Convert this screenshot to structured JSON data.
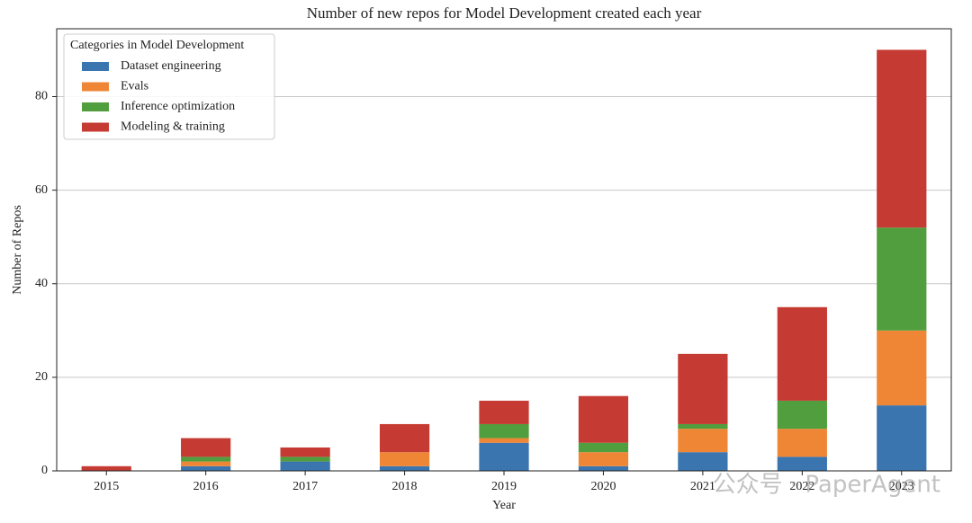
{
  "chart_data": {
    "type": "stacked_bar",
    "title": "Number of new repos for Model Development created each year",
    "x_label": "Year",
    "y_label": "Number of Repos",
    "categories": [
      "2015",
      "2016",
      "2017",
      "2018",
      "2019",
      "2020",
      "2021",
      "2022",
      "2023"
    ],
    "series": [
      {
        "name": "Dataset engineering",
        "color": "#3a75b0",
        "values": [
          0,
          1,
          2,
          1,
          6,
          1,
          4,
          3,
          14
        ]
      },
      {
        "name": "Evals",
        "color": "#ef8636",
        "values": [
          0,
          1,
          0,
          3,
          1,
          3,
          5,
          6,
          16
        ]
      },
      {
        "name": "Inference optimization",
        "color": "#519e3e",
        "values": [
          0,
          1,
          1,
          0,
          3,
          2,
          1,
          6,
          22
        ]
      },
      {
        "name": "Modeling & training",
        "color": "#c53a32",
        "values": [
          1,
          4,
          2,
          6,
          5,
          10,
          15,
          20,
          38
        ]
      }
    ],
    "legend_title": "Categories in Model Development",
    "legend_position": "upper-left",
    "ylim": [
      0,
      94.5
    ],
    "yticks": [
      0,
      20,
      40,
      60,
      80
    ],
    "grid": true,
    "watermark": "公众号 · PaperAgent"
  }
}
